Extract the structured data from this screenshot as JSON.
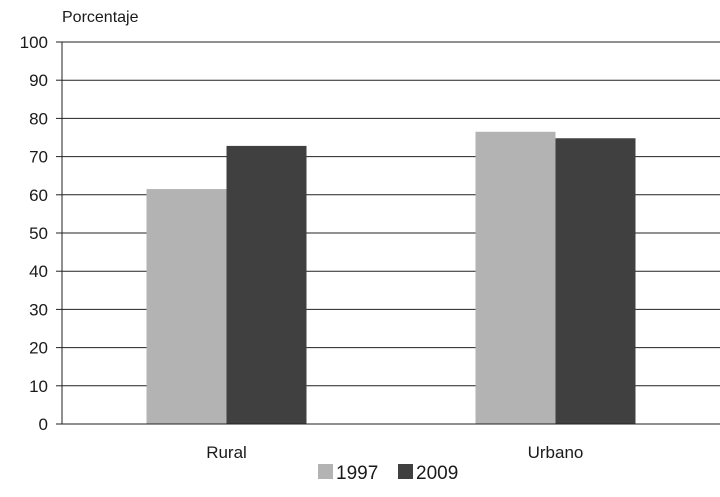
{
  "chart_data": {
    "type": "bar",
    "title": "",
    "xlabel": "",
    "ylabel": "Porcentaje",
    "ylim": [
      0,
      100
    ],
    "yticks": [
      0,
      10,
      20,
      30,
      40,
      50,
      60,
      70,
      80,
      90,
      100
    ],
    "categories": [
      "Rural",
      "Urbano"
    ],
    "series": [
      {
        "name": "1997",
        "values": [
          61.5,
          76.5
        ],
        "color": "#b3b3b3"
      },
      {
        "name": "2009",
        "values": [
          72.8,
          74.8
        ],
        "color": "#404040"
      }
    ],
    "grid": true,
    "legend_position": "bottom-center"
  }
}
